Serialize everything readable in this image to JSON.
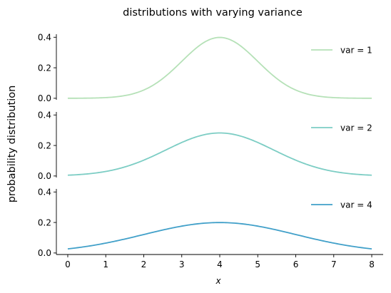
{
  "chart_data": {
    "type": "line",
    "title": "distributions with varying variance",
    "ylabel": "probability distribution",
    "xlabel": "x",
    "xlim": [
      -0.3,
      8.3
    ],
    "xticks": [
      "0",
      "1",
      "2",
      "3",
      "4",
      "5",
      "6",
      "7",
      "8"
    ],
    "grid": false,
    "legend_position": "right",
    "panels": [
      {
        "ylim": [
          -0.01,
          0.42
        ],
        "yticks": [
          "0.0",
          "0.2",
          "0.4"
        ],
        "series": [
          {
            "name": "var = 1",
            "color": "#b5e1b7",
            "x": [
              0,
              0.5,
              1,
              1.5,
              2,
              2.5,
              3,
              3.5,
              4,
              4.5,
              5,
              5.5,
              6,
              6.5,
              7,
              7.5,
              8
            ],
            "y": [
              0.0001,
              0.0009,
              0.0044,
              0.0175,
              0.054,
              0.1295,
              0.242,
              0.3521,
              0.3989,
              0.3521,
              0.242,
              0.1295,
              0.054,
              0.0175,
              0.0044,
              0.0009,
              0.0001
            ]
          }
        ]
      },
      {
        "ylim": [
          -0.01,
          0.42
        ],
        "yticks": [
          "0.0",
          "0.2",
          "0.4"
        ],
        "series": [
          {
            "name": "var = 2",
            "color": "#7ccdc4",
            "x": [
              0,
              0.5,
              1,
              1.5,
              2,
              2.5,
              3,
              3.5,
              4,
              4.5,
              5,
              5.5,
              6,
              6.5,
              7,
              7.5,
              8
            ],
            "y": [
              0.0052,
              0.0131,
              0.0297,
              0.0593,
              0.1038,
              0.1599,
              0.2197,
              0.2645,
              0.2821,
              0.2645,
              0.2197,
              0.1599,
              0.1038,
              0.0593,
              0.0297,
              0.0131,
              0.0052
            ]
          }
        ]
      },
      {
        "ylim": [
          -0.01,
          0.42
        ],
        "yticks": [
          "0.0",
          "0.2",
          "0.4"
        ],
        "series": [
          {
            "name": "var = 4",
            "color": "#41a0c9",
            "x": [
              0,
              0.5,
              1,
              1.5,
              2,
              2.5,
              3,
              3.5,
              4,
              4.5,
              5,
              5.5,
              6,
              6.5,
              7,
              7.5,
              8
            ],
            "y": [
              0.027,
              0.0432,
              0.0648,
              0.0911,
              0.121,
              0.1506,
              0.176,
              0.1933,
              0.1995,
              0.1933,
              0.176,
              0.1506,
              0.121,
              0.0911,
              0.0648,
              0.0432,
              0.027
            ]
          }
        ]
      }
    ]
  }
}
